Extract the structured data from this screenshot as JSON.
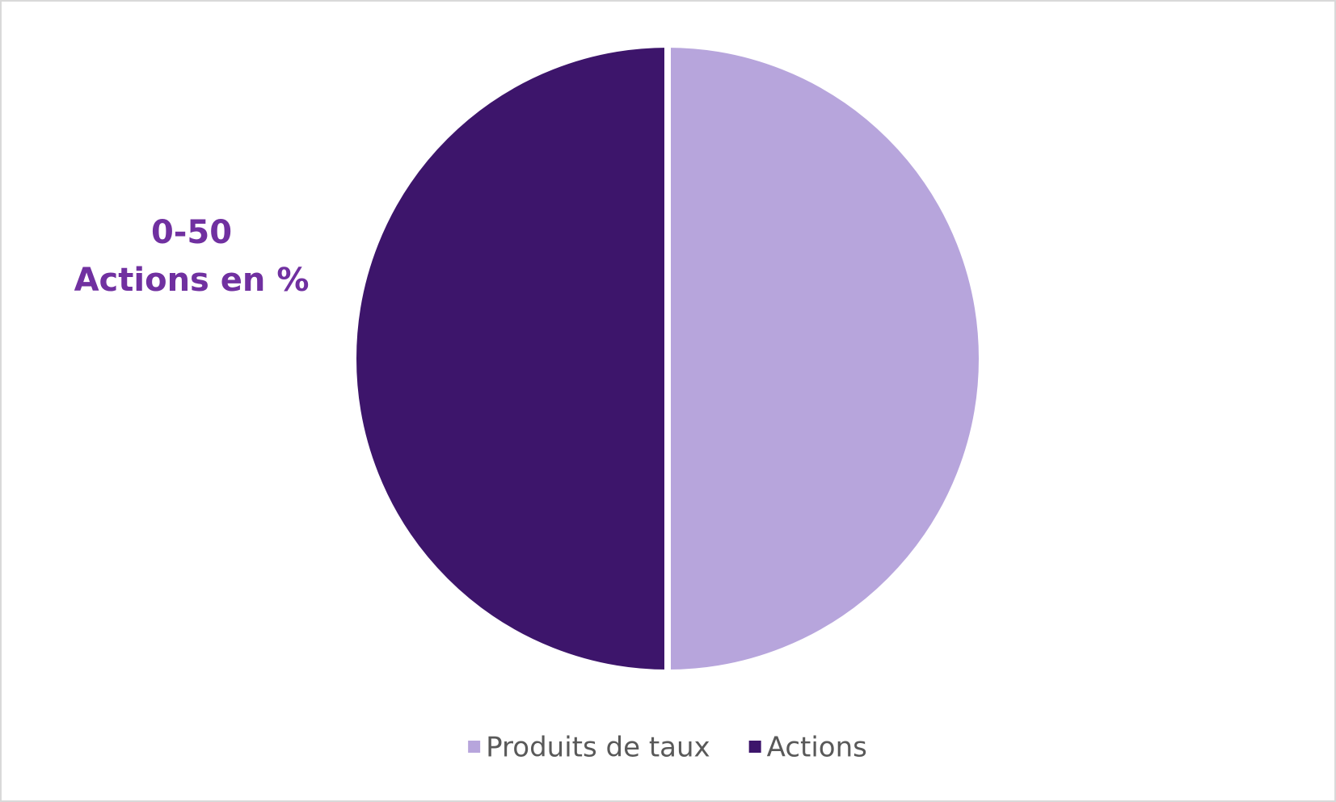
{
  "chart_data": {
    "type": "pie",
    "annotation": [
      "0-50",
      "Actions en %"
    ],
    "categories": [
      "Produits de taux",
      "Actions"
    ],
    "values": [
      50,
      50
    ],
    "colors": [
      "#b7a5dc",
      "#3d156b"
    ],
    "legend": "bottom"
  }
}
